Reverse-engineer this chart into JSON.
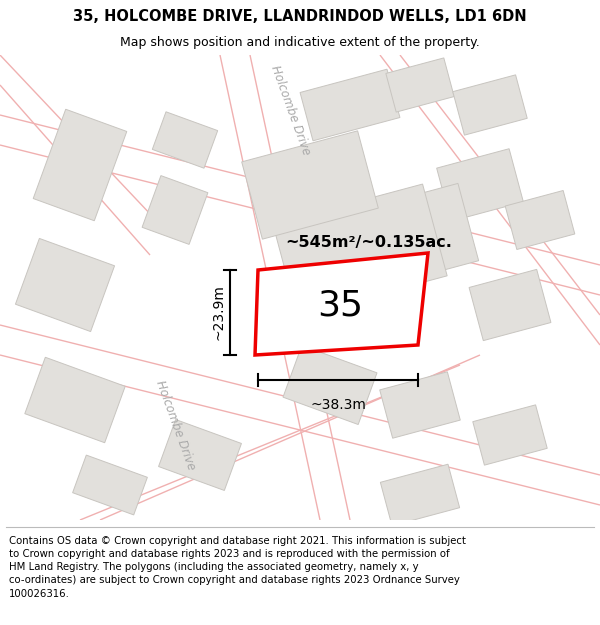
{
  "title_line1": "35, HOLCOMBE DRIVE, LLANDRINDOD WELLS, LD1 6DN",
  "title_line2": "Map shows position and indicative extent of the property.",
  "footer_wrapped": "Contains OS data © Crown copyright and database right 2021. This information is subject\nto Crown copyright and database rights 2023 and is reproduced with the permission of\nHM Land Registry. The polygons (including the associated geometry, namely x, y\nco-ordinates) are subject to Crown copyright and database rights 2023 Ordnance Survey\n100026316.",
  "area_label": "~545m²/~0.135ac.",
  "width_label": "~38.3m",
  "height_label": "~23.9m",
  "property_number": "35",
  "road_label_upper": "Holcombe Drive",
  "road_label_lower": "Holcombe Drive",
  "map_bg": "#f7f6f4",
  "building_fill": "#e2e0dc",
  "building_edge": "#c8c5c0",
  "road_line_color": "#f0b0b0",
  "property_edge_color": "#ee0000",
  "property_fill": "#ffffff"
}
